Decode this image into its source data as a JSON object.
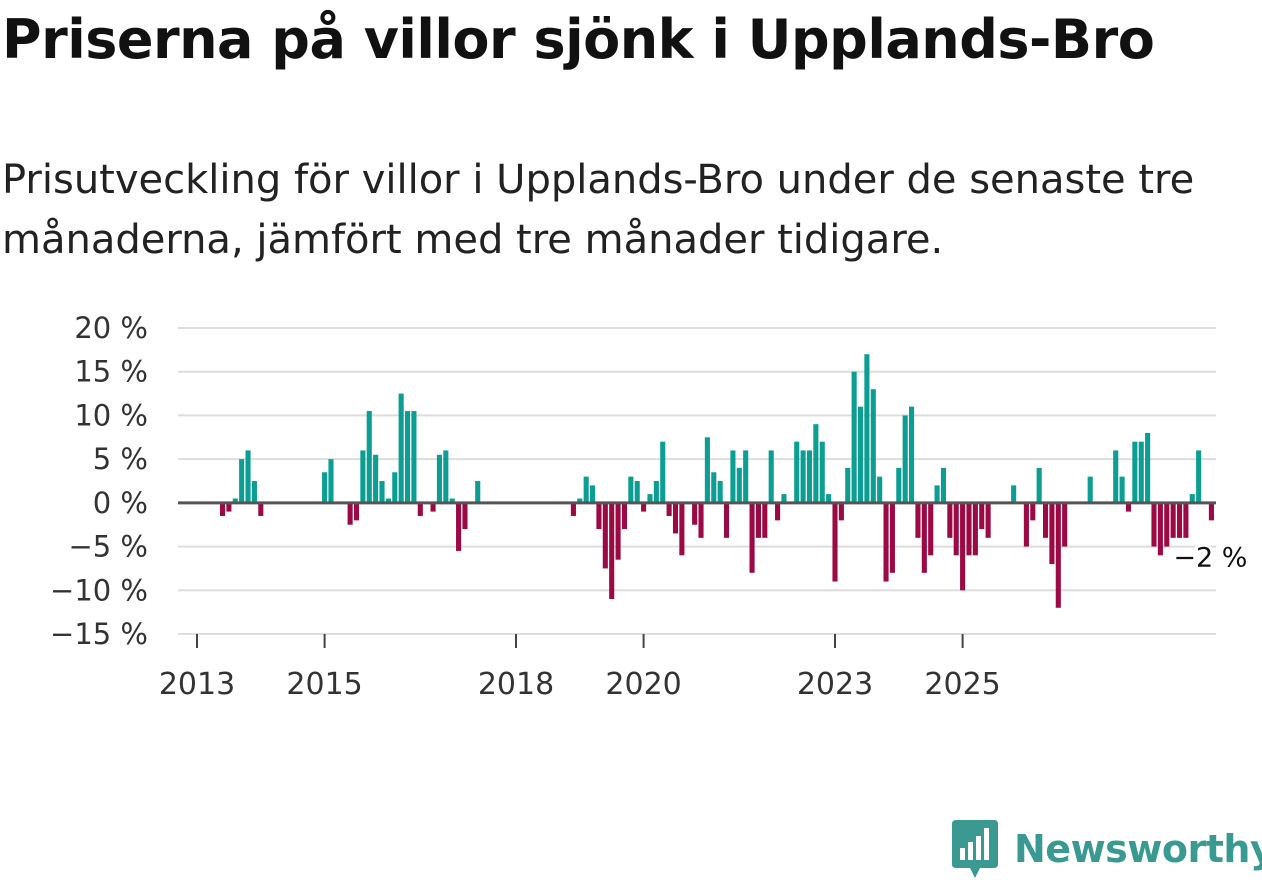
{
  "title": "Priserna på villor sjönk i Upplands-Bro",
  "subtitle": "Prisutveckling för villor i Upplands-Bro under de senaste tre månaderna, jämfört med tre månader tidigare.",
  "brand": "Newsworthy",
  "colors": {
    "positive": "#0d9e93",
    "negative": "#9b0a44",
    "brand": "#3a9a92"
  },
  "chart_data": {
    "type": "bar",
    "title": "Priserna på villor sjönk i Upplands-Bro",
    "xlabel": "",
    "ylabel": "",
    "ylim": [
      -15,
      20
    ],
    "yticks": [
      20,
      15,
      10,
      5,
      0,
      -5,
      -10,
      -15
    ],
    "ytick_labels": [
      "20 %",
      "15 %",
      "10 %",
      "5 %",
      "0 %",
      "−5 %",
      "−10 %",
      "−15 %"
    ],
    "xticks": [
      {
        "label": "2013",
        "index": 0
      },
      {
        "label": "2015",
        "index": 20
      },
      {
        "label": "2018",
        "index": 50
      },
      {
        "label": "2020",
        "index": 70
      },
      {
        "label": "2023",
        "index": 100
      },
      {
        "label": "2025",
        "index": 120
      }
    ],
    "grid": true,
    "series_note": "One bar per month, starting Jan 2013; null = no value",
    "values": [
      null,
      null,
      null,
      null,
      -1.5,
      -1,
      0.5,
      5,
      6,
      2.5,
      -1.5,
      null,
      null,
      null,
      null,
      null,
      null,
      null,
      null,
      null,
      3.5,
      5,
      null,
      null,
      -2.5,
      -2,
      6,
      10.5,
      5.5,
      2.5,
      0.5,
      3.5,
      12.5,
      10.5,
      10.5,
      -1.5,
      null,
      -1,
      5.5,
      6,
      0.5,
      -5.5,
      -3,
      null,
      2.5,
      null,
      null,
      null,
      null,
      null,
      null,
      null,
      null,
      null,
      null,
      null,
      null,
      null,
      null,
      -1.5,
      0.5,
      3,
      2,
      -3,
      -7.5,
      -11,
      -6.5,
      -3,
      3,
      2.5,
      -1,
      1,
      2.5,
      7,
      -1.5,
      -3.5,
      -6,
      null,
      -2.5,
      -4,
      7.5,
      3.5,
      2.5,
      -4,
      6,
      4,
      6,
      -8,
      -4,
      -4,
      6,
      -2,
      1,
      null,
      7,
      6,
      6,
      9,
      7,
      1,
      -9,
      -2,
      4,
      15,
      11,
      17,
      13,
      3,
      -9,
      -8,
      4,
      10,
      11,
      -4,
      -8,
      -6,
      2,
      4,
      -4,
      -6,
      -10,
      -6,
      -6,
      -3,
      -4,
      null,
      null,
      null,
      2,
      null,
      -5,
      -2,
      4,
      -4,
      -7,
      -12,
      -5,
      null,
      null,
      null,
      3,
      null,
      null,
      null,
      6,
      3,
      -1,
      7,
      7,
      8,
      -5,
      -6,
      -5,
      -4,
      -4,
      -4,
      1,
      6,
      null,
      -2
    ],
    "last_value_label": "−2 %",
    "last_value": -2
  }
}
